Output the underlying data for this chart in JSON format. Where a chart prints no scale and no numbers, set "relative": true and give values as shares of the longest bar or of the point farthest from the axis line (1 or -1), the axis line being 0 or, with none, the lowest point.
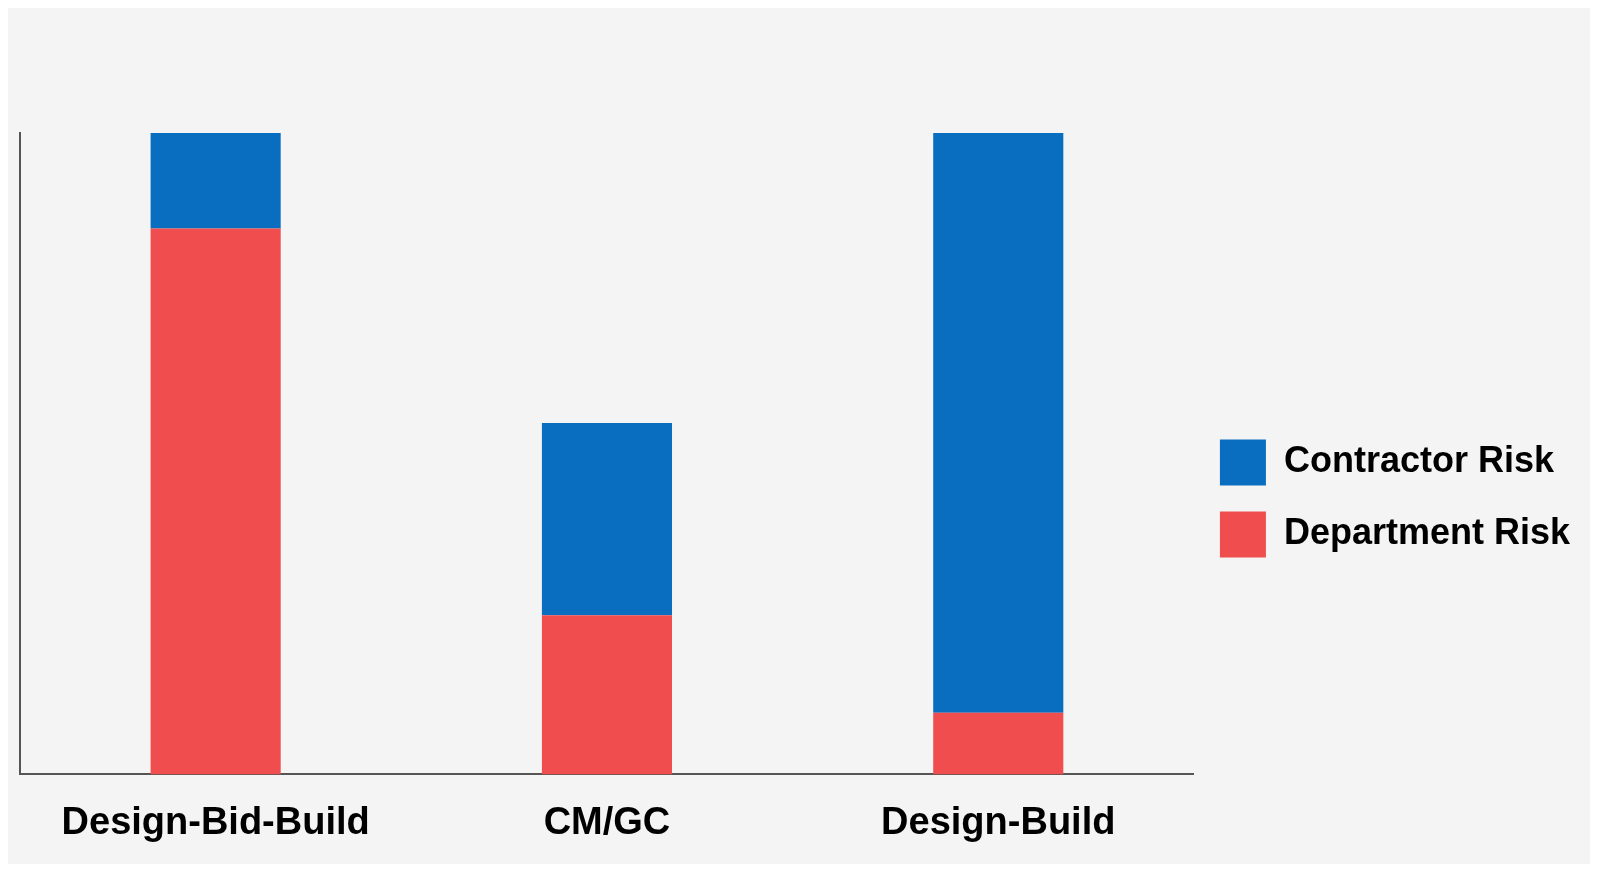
{
  "chart_data": {
    "type": "bar",
    "stacked": true,
    "relative": true,
    "legend": "right",
    "categories": [
      "Design-Bid-Build",
      "CM/GC",
      "Design-Build"
    ],
    "series": [
      {
        "name": "Department Risk",
        "color": "#f04e4e",
        "values": [
          0.851,
          0.248,
          0.096
        ]
      },
      {
        "name": "Contractor Risk",
        "color": "#0a6ec0",
        "values": [
          0.149,
          0.3,
          0.904
        ]
      }
    ]
  }
}
